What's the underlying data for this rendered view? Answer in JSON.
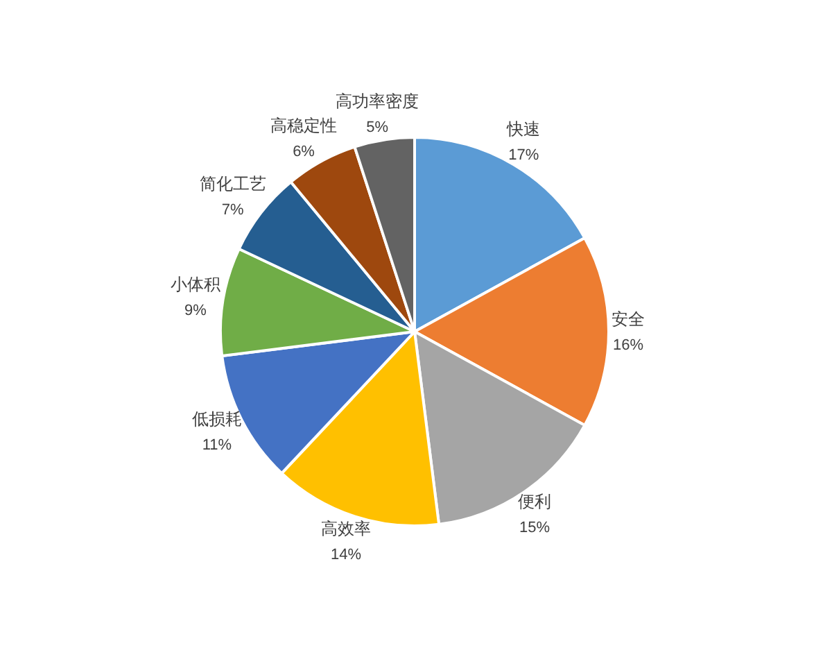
{
  "chart_data": {
    "type": "pie",
    "categories": [
      "快速",
      "安全",
      "便利",
      "高效率",
      "低损耗",
      "小体积",
      "简化工艺",
      "高稳定性",
      "高功率密度"
    ],
    "values": [
      17,
      16,
      15,
      14,
      11,
      9,
      7,
      6,
      5
    ],
    "value_labels": [
      "17%",
      "16%",
      "15%",
      "14%",
      "11%",
      "9%",
      "7%",
      "6%",
      "5%"
    ],
    "colors": [
      "#5b9bd5",
      "#ed7d31",
      "#a5a5a5",
      "#ffc000",
      "#4472c4",
      "#70ad47",
      "#255e91",
      "#9e480e",
      "#636363"
    ]
  }
}
